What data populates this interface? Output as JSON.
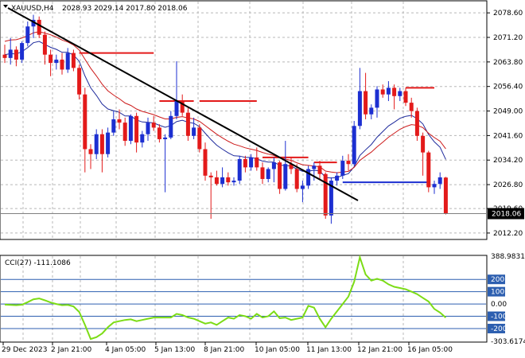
{
  "header": {
    "symbol": "XAUUSD,H4",
    "ohlc": "2028.93 2029.14 2017.80 2018.06"
  },
  "price_axis": {
    "ticks": [
      "2078.60",
      "2071.20",
      "2063.80",
      "2056.40",
      "2049.00",
      "2041.60",
      "2034.20",
      "2026.80",
      "2019.60",
      "2012.20"
    ],
    "current": "2018.06"
  },
  "cci": {
    "label": "CCI(27) -111.1086",
    "ticks": [
      "388.9831",
      "200",
      "100",
      "0.00",
      "-100",
      "-200",
      "-303.6174"
    ],
    "boxed": [
      "200",
      "100",
      "-100",
      "-200"
    ]
  },
  "time_axis": {
    "labels": [
      "29 Dec 2023",
      "2 Jan 21:00",
      "4 Jan 05:00",
      "5 Jan 13:00",
      "8 Jan 21:00",
      "10 Jan 05:00",
      "11 Jan 13:00",
      "12 Jan 21:00",
      "16 Jan 05:00"
    ]
  },
  "colors": {
    "bull": "#1c2fd1",
    "bear": "#e31a1a",
    "trendline": "#000000",
    "cci_line": "#7cdc16",
    "level_line": "#2d5fb0"
  },
  "chart_data": {
    "type": "candlestick",
    "title": "XAUUSD,H4",
    "ylim": [
      2010.5,
      2082.0
    ],
    "candles": [
      {
        "o": 2066.0,
        "h": 2069.0,
        "l": 2063.5,
        "c": 2065.0
      },
      {
        "o": 2065.0,
        "h": 2071.0,
        "l": 2063.0,
        "c": 2067.5
      },
      {
        "o": 2067.5,
        "h": 2068.5,
        "l": 2062.5,
        "c": 2064.5
      },
      {
        "o": 2064.5,
        "h": 2070.0,
        "l": 2063.5,
        "c": 2069.5
      },
      {
        "o": 2069.5,
        "h": 2076.0,
        "l": 2068.5,
        "c": 2074.5
      },
      {
        "o": 2074.5,
        "h": 2078.0,
        "l": 2071.0,
        "c": 2076.5
      },
      {
        "o": 2076.5,
        "h": 2077.5,
        "l": 2071.0,
        "c": 2072.0
      },
      {
        "o": 2072.0,
        "h": 2073.0,
        "l": 2063.0,
        "c": 2066.0
      },
      {
        "o": 2066.0,
        "h": 2067.5,
        "l": 2059.5,
        "c": 2063.5
      },
      {
        "o": 2063.5,
        "h": 2066.0,
        "l": 2061.5,
        "c": 2064.5
      },
      {
        "o": 2064.5,
        "h": 2066.5,
        "l": 2060.0,
        "c": 2061.5
      },
      {
        "o": 2061.5,
        "h": 2068.0,
        "l": 2060.5,
        "c": 2066.5
      },
      {
        "o": 2066.5,
        "h": 2067.5,
        "l": 2061.0,
        "c": 2062.0
      },
      {
        "o": 2062.0,
        "h": 2063.0,
        "l": 2052.5,
        "c": 2054.0
      },
      {
        "o": 2054.0,
        "h": 2056.0,
        "l": 2030.5,
        "c": 2037.5
      },
      {
        "o": 2037.5,
        "h": 2039.0,
        "l": 2031.5,
        "c": 2036.0
      },
      {
        "o": 2036.0,
        "h": 2043.5,
        "l": 2034.5,
        "c": 2042.0
      },
      {
        "o": 2042.0,
        "h": 2043.5,
        "l": 2030.5,
        "c": 2036.0
      },
      {
        "o": 2036.0,
        "h": 2044.0,
        "l": 2035.0,
        "c": 2042.5
      },
      {
        "o": 2042.5,
        "h": 2049.0,
        "l": 2041.5,
        "c": 2046.5
      },
      {
        "o": 2046.5,
        "h": 2049.5,
        "l": 2043.5,
        "c": 2045.5
      },
      {
        "o": 2045.5,
        "h": 2047.0,
        "l": 2038.5,
        "c": 2040.0
      },
      {
        "o": 2040.0,
        "h": 2048.0,
        "l": 2039.0,
        "c": 2047.5
      },
      {
        "o": 2047.5,
        "h": 2048.5,
        "l": 2036.5,
        "c": 2039.5
      },
      {
        "o": 2039.5,
        "h": 2043.0,
        "l": 2038.0,
        "c": 2042.0
      },
      {
        "o": 2042.0,
        "h": 2047.0,
        "l": 2040.0,
        "c": 2045.5
      },
      {
        "o": 2045.5,
        "h": 2047.5,
        "l": 2043.0,
        "c": 2044.0
      },
      {
        "o": 2044.0,
        "h": 2045.0,
        "l": 2039.5,
        "c": 2040.5
      },
      {
        "o": 2040.5,
        "h": 2042.0,
        "l": 2024.5,
        "c": 2041.0
      },
      {
        "o": 2041.0,
        "h": 2049.0,
        "l": 2040.5,
        "c": 2047.5
      },
      {
        "o": 2047.5,
        "h": 2064.0,
        "l": 2046.5,
        "c": 2052.0
      },
      {
        "o": 2052.0,
        "h": 2054.0,
        "l": 2047.5,
        "c": 2048.5
      },
      {
        "o": 2048.5,
        "h": 2050.0,
        "l": 2040.0,
        "c": 2041.5
      },
      {
        "o": 2041.5,
        "h": 2047.0,
        "l": 2040.5,
        "c": 2044.0
      },
      {
        "o": 2044.0,
        "h": 2045.0,
        "l": 2036.5,
        "c": 2037.5
      },
      {
        "o": 2037.5,
        "h": 2039.5,
        "l": 2028.0,
        "c": 2029.5
      },
      {
        "o": 2029.5,
        "h": 2030.5,
        "l": 2016.5,
        "c": 2029.0
      },
      {
        "o": 2029.0,
        "h": 2031.0,
        "l": 2026.5,
        "c": 2027.0
      },
      {
        "o": 2027.0,
        "h": 2032.0,
        "l": 2026.0,
        "c": 2029.0
      },
      {
        "o": 2029.0,
        "h": 2030.5,
        "l": 2026.5,
        "c": 2027.5
      },
      {
        "o": 2027.5,
        "h": 2029.0,
        "l": 2026.5,
        "c": 2028.0
      },
      {
        "o": 2028.0,
        "h": 2035.5,
        "l": 2027.0,
        "c": 2034.5
      },
      {
        "o": 2034.5,
        "h": 2035.5,
        "l": 2030.5,
        "c": 2032.0
      },
      {
        "o": 2032.0,
        "h": 2036.0,
        "l": 2031.0,
        "c": 2035.0
      },
      {
        "o": 2035.0,
        "h": 2038.0,
        "l": 2031.0,
        "c": 2032.0
      },
      {
        "o": 2032.0,
        "h": 2033.5,
        "l": 2027.0,
        "c": 2028.5
      },
      {
        "o": 2028.5,
        "h": 2032.0,
        "l": 2027.5,
        "c": 2031.5
      },
      {
        "o": 2031.5,
        "h": 2035.0,
        "l": 2027.5,
        "c": 2033.5
      },
      {
        "o": 2033.5,
        "h": 2034.0,
        "l": 2024.0,
        "c": 2025.5
      },
      {
        "o": 2025.5,
        "h": 2040.0,
        "l": 2025.0,
        "c": 2033.0
      },
      {
        "o": 2033.0,
        "h": 2035.0,
        "l": 2030.0,
        "c": 2031.5
      },
      {
        "o": 2031.5,
        "h": 2033.0,
        "l": 2024.5,
        "c": 2025.5
      },
      {
        "o": 2025.5,
        "h": 2028.0,
        "l": 2021.5,
        "c": 2026.5
      },
      {
        "o": 2026.5,
        "h": 2032.5,
        "l": 2025.5,
        "c": 2031.5
      },
      {
        "o": 2031.5,
        "h": 2033.5,
        "l": 2028.0,
        "c": 2032.5
      },
      {
        "o": 2032.5,
        "h": 2034.0,
        "l": 2028.5,
        "c": 2030.0
      },
      {
        "o": 2030.0,
        "h": 2030.5,
        "l": 2016.5,
        "c": 2017.5
      },
      {
        "o": 2017.5,
        "h": 2029.0,
        "l": 2015.0,
        "c": 2028.0
      },
      {
        "o": 2028.0,
        "h": 2030.5,
        "l": 2026.5,
        "c": 2029.5
      },
      {
        "o": 2029.5,
        "h": 2035.5,
        "l": 2028.5,
        "c": 2034.0
      },
      {
        "o": 2034.0,
        "h": 2036.0,
        "l": 2031.0,
        "c": 2033.0
      },
      {
        "o": 2033.0,
        "h": 2046.0,
        "l": 2032.5,
        "c": 2044.5
      },
      {
        "o": 2044.5,
        "h": 2062.0,
        "l": 2043.5,
        "c": 2055.0
      },
      {
        "o": 2055.0,
        "h": 2060.5,
        "l": 2046.5,
        "c": 2048.0
      },
      {
        "o": 2048.0,
        "h": 2051.0,
        "l": 2046.5,
        "c": 2050.0
      },
      {
        "o": 2050.0,
        "h": 2056.5,
        "l": 2047.0,
        "c": 2055.5
      },
      {
        "o": 2055.5,
        "h": 2057.0,
        "l": 2053.0,
        "c": 2054.0
      },
      {
        "o": 2054.0,
        "h": 2058.0,
        "l": 2052.0,
        "c": 2056.0
      },
      {
        "o": 2056.0,
        "h": 2057.0,
        "l": 2049.5,
        "c": 2053.5
      },
      {
        "o": 2053.5,
        "h": 2056.0,
        "l": 2052.0,
        "c": 2055.0
      },
      {
        "o": 2055.0,
        "h": 2056.0,
        "l": 2050.5,
        "c": 2051.5
      },
      {
        "o": 2051.5,
        "h": 2053.0,
        "l": 2047.0,
        "c": 2049.0
      },
      {
        "o": 2049.0,
        "h": 2050.0,
        "l": 2040.0,
        "c": 2041.5
      },
      {
        "o": 2041.5,
        "h": 2042.5,
        "l": 2029.5,
        "c": 2036.5
      },
      {
        "o": 2036.5,
        "h": 2037.0,
        "l": 2024.5,
        "c": 2026.0
      },
      {
        "o": 2026.0,
        "h": 2028.0,
        "l": 2024.0,
        "c": 2027.0
      },
      {
        "o": 2027.0,
        "h": 2030.5,
        "l": 2025.5,
        "c": 2029.0
      },
      {
        "o": 2028.93,
        "h": 2029.14,
        "l": 2017.8,
        "c": 2018.06
      }
    ],
    "ma_fast": [
      2066.0,
      2066.3,
      2066.2,
      2066.9,
      2068.1,
      2069.6,
      2070.0,
      2069.1,
      2068.2,
      2067.6,
      2066.7,
      2066.7,
      2065.9,
      2064.0,
      2059.6,
      2056.0,
      2053.7,
      2051.1,
      2049.6,
      2049.1,
      2048.6,
      2047.5,
      2047.5,
      2046.3,
      2045.7,
      2045.6,
      2045.4,
      2044.7,
      2044.1,
      2044.6,
      2045.8,
      2046.2,
      2045.6,
      2045.3,
      2044.3,
      2042.3,
      2040.4,
      2038.7,
      2037.5,
      2036.4,
      2035.5,
      2035.4,
      2035.0,
      2035.0,
      2034.6,
      2033.9,
      2033.6,
      2033.6,
      2032.6,
      2032.6,
      2032.4,
      2031.5,
      2030.8,
      2030.9,
      2031.1,
      2031.0,
      2028.9,
      2028.8,
      2028.9,
      2029.6,
      2030.1,
      2032.2,
      2035.6,
      2037.3,
      2038.9,
      2041.1,
      2042.8,
      2044.5,
      2045.6,
      2046.8,
      2047.4,
      2047.7,
      2046.7,
      2045.1,
      2041.9,
      2039.7,
      2038.1,
      2034.4
    ],
    "ma_slow": [
      2070.0,
      2070.4,
      2070.5,
      2071.0,
      2071.7,
      2072.6,
      2072.9,
      2072.5,
      2072.0,
      2071.3,
      2070.4,
      2069.8,
      2068.9,
      2067.4,
      2064.6,
      2061.9,
      2059.6,
      2057.1,
      2055.1,
      2053.8,
      2052.7,
      2051.4,
      2050.7,
      2049.6,
      2048.9,
      2048.4,
      2047.9,
      2047.2,
      2046.6,
      2046.6,
      2047.1,
      2047.3,
      2046.9,
      2046.6,
      2045.9,
      2044.6,
      2043.3,
      2042.0,
      2040.9,
      2039.9,
      2039.0,
      2038.5,
      2037.9,
      2037.5,
      2037.1,
      2036.5,
      2036.0,
      2035.6,
      2034.8,
      2034.5,
      2034.1,
      2033.4,
      2032.8,
      2032.6,
      2032.4,
      2032.2,
      2030.9,
      2030.6,
      2030.4,
      2030.6,
      2030.8,
      2032.0,
      2034.1,
      2035.4,
      2036.6,
      2038.2,
      2039.6,
      2041.1,
      2042.3,
      2043.5,
      2044.3,
      2044.9,
      2044.7,
      2044.0,
      2042.3,
      2041.0,
      2039.9,
      2037.6
    ],
    "cci": [
      -5,
      -8,
      -10,
      -6,
      15,
      38,
      45,
      30,
      12,
      0,
      -10,
      -8,
      -20,
      -65,
      -170,
      -285,
      -270,
      -240,
      -190,
      -150,
      -140,
      -130,
      -125,
      -140,
      -130,
      -120,
      -110,
      -110,
      -110,
      -110,
      -80,
      -90,
      -110,
      -120,
      -140,
      -160,
      -150,
      -170,
      -140,
      -110,
      -120,
      -90,
      -100,
      -120,
      -80,
      -110,
      -100,
      -60,
      -115,
      -110,
      -130,
      -120,
      -110,
      -15,
      -30,
      -120,
      -190,
      -120,
      -60,
      0,
      60,
      180,
      380,
      240,
      190,
      205,
      190,
      160,
      140,
      130,
      120,
      100,
      80,
      50,
      20,
      -40,
      -70,
      -111
    ]
  }
}
